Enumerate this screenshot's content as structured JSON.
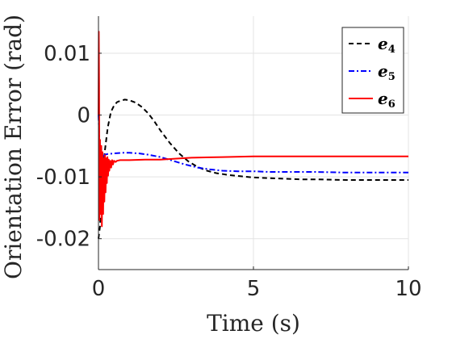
{
  "chart_data": {
    "type": "line",
    "title": "",
    "xlabel": "Time (s)",
    "ylabel": "Orientation Error (rad)",
    "xlim": [
      0,
      10
    ],
    "ylim": [
      -0.025,
      0.016
    ],
    "xticks": [
      0,
      5,
      10
    ],
    "xtick_labels": [
      "0",
      "5",
      "10"
    ],
    "yticks": [
      -0.02,
      -0.01,
      0,
      0.01
    ],
    "ytick_labels": [
      "-0.02",
      "-0.01",
      "0",
      "0.01"
    ],
    "grid": true,
    "legend_position": "top-right",
    "series": [
      {
        "name": "e",
        "subscript": "4",
        "color": "#000000",
        "dash": "dashed",
        "x": [
          0,
          0.05,
          0.1,
          0.15,
          0.2,
          0.3,
          0.4,
          0.5,
          0.6,
          0.7,
          0.85,
          1.0,
          1.2,
          1.4,
          1.6,
          1.8,
          2.0,
          2.3,
          2.6,
          2.9,
          3.2,
          3.5,
          3.8,
          4.2,
          4.6,
          5.0,
          5.5,
          6.0,
          6.5,
          7.0,
          8.0,
          9.0,
          10.0
        ],
        "y": [
          -0.02,
          -0.018,
          -0.013,
          -0.009,
          -0.006,
          -0.002,
          0.0005,
          0.0015,
          0.0021,
          0.0023,
          0.0025,
          0.0024,
          0.002,
          0.0013,
          0.0003,
          -0.001,
          -0.0025,
          -0.0045,
          -0.0062,
          -0.0075,
          -0.0084,
          -0.009,
          -0.0094,
          -0.0097,
          -0.0099,
          -0.0101,
          -0.0102,
          -0.0103,
          -0.0104,
          -0.0104,
          -0.0105,
          -0.0105,
          -0.0105
        ]
      },
      {
        "name": "e",
        "subscript": "5",
        "color": "#0000ff",
        "dash": "dashdot",
        "x": [
          0,
          0.02,
          0.05,
          0.1,
          0.15,
          0.2,
          0.3,
          0.5,
          0.8,
          1.0,
          1.3,
          1.6,
          2.0,
          2.4,
          2.8,
          3.2,
          3.6,
          4.0,
          4.5,
          5.0,
          5.5,
          6.0,
          7.0,
          8.0,
          9.0,
          10.0
        ],
        "y": [
          0.0,
          -0.003,
          -0.006,
          -0.0072,
          -0.0068,
          -0.0064,
          -0.0063,
          -0.0062,
          -0.0061,
          -0.0061,
          -0.0062,
          -0.0064,
          -0.0068,
          -0.0074,
          -0.008,
          -0.0085,
          -0.0088,
          -0.009,
          -0.0091,
          -0.0091,
          -0.0092,
          -0.0092,
          -0.0092,
          -0.0093,
          -0.0093,
          -0.0093
        ]
      },
      {
        "name": "e",
        "subscript": "6",
        "color": "#ff0000",
        "dash": "solid",
        "x": [
          0,
          0.01,
          0.02,
          0.03,
          0.05,
          0.07,
          0.09,
          0.11,
          0.13,
          0.15,
          0.17,
          0.19,
          0.21,
          0.23,
          0.25,
          0.27,
          0.29,
          0.31,
          0.33,
          0.35,
          0.38,
          0.41,
          0.44,
          0.47,
          0.5,
          0.55,
          0.6,
          0.7,
          0.8,
          1.0,
          1.5,
          2.0,
          3.0,
          4.0,
          5.0,
          6.0,
          7.0,
          8.0,
          10.0
        ],
        "y": [
          0.0,
          0.0135,
          0.005,
          -0.017,
          -0.004,
          -0.016,
          -0.005,
          -0.018,
          -0.006,
          -0.016,
          -0.007,
          -0.014,
          -0.0065,
          -0.0125,
          -0.007,
          -0.011,
          -0.0068,
          -0.0098,
          -0.0072,
          -0.009,
          -0.0074,
          -0.0085,
          -0.0073,
          -0.008,
          -0.0074,
          -0.0076,
          -0.0074,
          -0.0073,
          -0.0073,
          -0.0073,
          -0.0072,
          -0.0072,
          -0.0069,
          -0.0068,
          -0.0067,
          -0.0067,
          -0.0067,
          -0.0067,
          -0.0067
        ]
      }
    ]
  }
}
